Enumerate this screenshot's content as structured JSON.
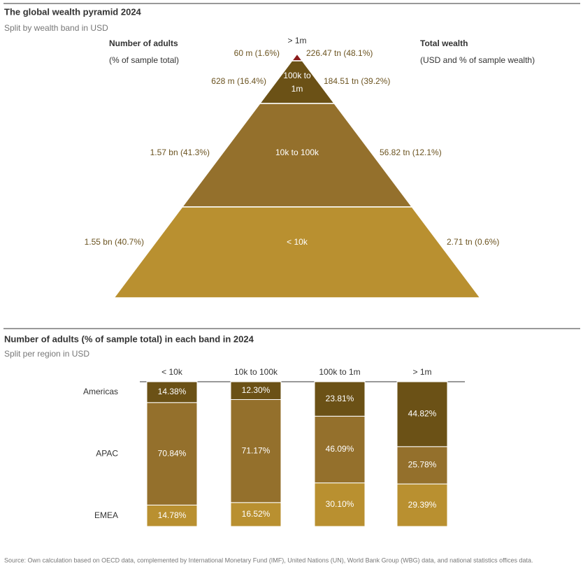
{
  "chart_data": [
    {
      "type": "pyramid",
      "title": "The global wealth pyramid 2024",
      "subtitle": "Split by wealth band in USD",
      "left_header": "Number of adults",
      "left_subheader": "(% of sample total)",
      "right_header": "Total wealth",
      "right_subheader": "(USD and % of sample wealth)",
      "categories": [
        "> 1m",
        "100k to 1m",
        "10k to 100k",
        "< 10k"
      ],
      "left_labels": [
        "60 m (1.6%)",
        "628 m (16.4%)",
        "1.57 bn (41.3%)",
        "1.55 bn (40.7%)"
      ],
      "right_labels": [
        "226.47 tn (48.1%)",
        "184.51 tn (39.2%)",
        "56.82 tn (12.1%)",
        "2.71 tn (0.6%)"
      ],
      "colors": [
        "#8b1a1a",
        "#6b5116",
        "#94702c",
        "#b99030"
      ]
    },
    {
      "type": "stacked-bar",
      "title": "Number of adults (% of sample total) in each band in 2024",
      "subtitle": "Split per region in USD",
      "categories": [
        "< 10k",
        "10k to 100k",
        "100k to 1m",
        "> 1m"
      ],
      "series": [
        {
          "name": "Americas",
          "color": "#6b5116",
          "values": [
            14.38,
            12.3,
            23.81,
            44.82
          ],
          "value_labels": [
            "14.38%",
            "12.30%",
            "23.81%",
            "44.82%"
          ]
        },
        {
          "name": "APAC",
          "color": "#94702c",
          "values": [
            70.84,
            71.17,
            46.09,
            25.78
          ],
          "value_labels": [
            "70.84%",
            "71.17%",
            "46.09%",
            "25.78%"
          ]
        },
        {
          "name": "EMEA",
          "color": "#b99030",
          "values": [
            14.78,
            16.52,
            30.1,
            29.39
          ],
          "value_labels": [
            "14.78%",
            "16.52%",
            "30.10%",
            "29.39%"
          ]
        }
      ],
      "ylim": [
        0,
        100
      ]
    }
  ],
  "source": "Source: Own calculation based on OECD data, complemented by International Monetary Fund (IMF), United Nations (UN), World Bank Group (WBG) data, and national statistics offices data."
}
